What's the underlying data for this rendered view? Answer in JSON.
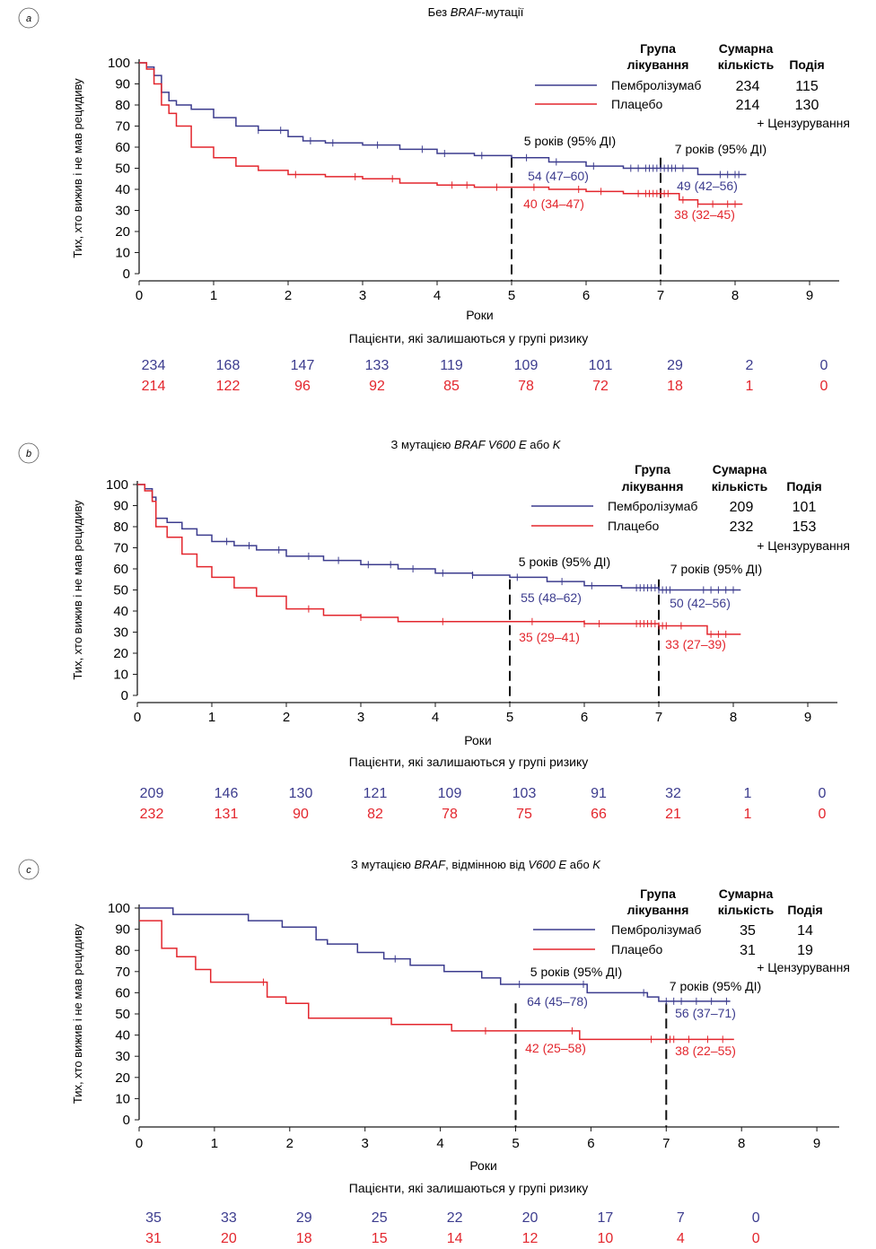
{
  "common": {
    "xlabel": "Роки",
    "ylabel": "Тих, хто вижив і не мав рецидиву",
    "risk_title": "Пацієнти, які залишаються у групі ризику",
    "legend_header_group": [
      "Група",
      "лікування"
    ],
    "legend_header_total": [
      "Сумарна",
      "кількість"
    ],
    "legend_header_events": "Подія",
    "censor_note": "+ Цензурування",
    "colors": {
      "pembro": "#3c3c8e",
      "placebo": "#e3262d",
      "axis": "#1a1a1a"
    }
  },
  "chart_data": [
    {
      "type": "line",
      "panel_letter": "a",
      "title_parts": [
        "Без ",
        "BRAF",
        "-мутації"
      ],
      "title_italic": [
        false,
        true,
        false
      ],
      "xticks": [
        0,
        1,
        2,
        3,
        4,
        5,
        6,
        7,
        8,
        9
      ],
      "yticks": [
        0,
        10,
        20,
        30,
        40,
        50,
        60,
        70,
        80,
        90,
        100
      ],
      "xlim": [
        0,
        9.4
      ],
      "ylim": [
        0,
        100
      ],
      "series": [
        {
          "name": "Пембролізумаб",
          "total": "234",
          "events": "115",
          "x": [
            0,
            0.1,
            0.2,
            0.3,
            0.4,
            0.5,
            0.7,
            1,
            1.3,
            1.6,
            2,
            2.2,
            2.5,
            3,
            3.5,
            4,
            4.5,
            5,
            5.5,
            6,
            6.5,
            7,
            7.5,
            8,
            8.15
          ],
          "y": [
            100,
            98,
            94,
            86,
            82,
            80,
            78,
            74,
            70,
            68,
            65,
            63,
            62,
            61,
            59,
            57,
            56,
            55,
            53,
            51,
            50,
            50,
            47,
            47,
            47
          ],
          "censor_x": [
            1.6,
            1.9,
            2.3,
            2.6,
            3.2,
            3.8,
            4.1,
            4.6,
            5.2,
            5.6,
            6.1,
            6.6,
            6.7,
            6.8,
            6.85,
            6.9,
            6.95,
            7.0,
            7.05,
            7.1,
            7.15,
            7.2,
            7.3,
            7.8,
            7.9,
            8.0,
            8.05
          ]
        },
        {
          "name": "Плацебо",
          "total": "214",
          "events": "130",
          "x": [
            0,
            0.1,
            0.2,
            0.3,
            0.4,
            0.5,
            0.7,
            1,
            1.3,
            1.6,
            2,
            2.5,
            3,
            3.5,
            4,
            4.5,
            5,
            5.5,
            6,
            6.5,
            7,
            7.25,
            7.5,
            8,
            8.1
          ],
          "y": [
            100,
            97,
            90,
            80,
            76,
            70,
            60,
            55,
            51,
            49,
            47,
            46,
            45,
            43,
            42,
            41,
            41,
            40,
            39,
            38,
            38,
            35,
            33,
            33,
            33
          ],
          "censor_x": [
            2.1,
            2.9,
            3.4,
            4.2,
            4.4,
            4.8,
            5.3,
            5.9,
            6.2,
            6.7,
            6.8,
            6.85,
            6.9,
            6.95,
            7.0,
            7.05,
            7.1,
            7.3,
            7.5,
            7.7,
            7.9,
            8.0
          ]
        }
      ],
      "annotations": {
        "five_label": "5 років (95% ДІ)",
        "seven_label": "7 років (95% ДІ)",
        "pembro_5": "54 (47–60)",
        "placebo_5": "40 (34–47)",
        "pembro_7": "49 (42–56)",
        "placebo_7": "38 (32–45)"
      },
      "risk": {
        "pembro": [
          "234",
          "168",
          "147",
          "133",
          "119",
          "109",
          "101",
          "29",
          "2",
          "0"
        ],
        "placebo": [
          "214",
          "122",
          "96",
          "92",
          "85",
          "78",
          "72",
          "18",
          "1",
          "0"
        ]
      }
    },
    {
      "type": "line",
      "panel_letter": "b",
      "title_parts": [
        "З мутацією ",
        "BRAF V600 E",
        " або ",
        "K"
      ],
      "title_italic": [
        false,
        true,
        false,
        true
      ],
      "xticks": [
        0,
        1,
        2,
        3,
        4,
        5,
        6,
        7,
        8,
        9
      ],
      "yticks": [
        0,
        10,
        20,
        30,
        40,
        50,
        60,
        70,
        80,
        90,
        100
      ],
      "xlim": [
        0,
        9.4
      ],
      "ylim": [
        0,
        100
      ],
      "series": [
        {
          "name": "Пембролізумаб",
          "total": "209",
          "events": "101",
          "x": [
            0,
            0.1,
            0.2,
            0.25,
            0.4,
            0.6,
            0.8,
            1,
            1.3,
            1.6,
            2,
            2.5,
            3,
            3.5,
            4,
            4.5,
            5,
            5.5,
            6,
            6.5,
            7,
            7.5,
            8,
            8.1
          ],
          "y": [
            100,
            98,
            94,
            84,
            82,
            79,
            76,
            73,
            71,
            69,
            66,
            64,
            62,
            60,
            58,
            57,
            56,
            54,
            52,
            51,
            50,
            50,
            50,
            50
          ],
          "censor_x": [
            0.2,
            1.2,
            1.5,
            1.9,
            2.3,
            2.7,
            3.1,
            3.4,
            3.7,
            4.1,
            4.5,
            5.1,
            5.7,
            6.1,
            6.7,
            6.75,
            6.8,
            6.85,
            6.9,
            6.95,
            7.0,
            7.05,
            7.1,
            7.15,
            7.6,
            7.7,
            7.8,
            7.9,
            8.0
          ]
        },
        {
          "name": "Плацебо",
          "total": "232",
          "events": "153",
          "x": [
            0,
            0.1,
            0.2,
            0.25,
            0.4,
            0.6,
            0.8,
            1,
            1.3,
            1.6,
            2,
            2.5,
            3,
            3.5,
            4,
            4.5,
            5,
            5.5,
            6,
            6.5,
            7,
            7.5,
            7.65,
            8,
            8.1
          ],
          "y": [
            100,
            97,
            92,
            80,
            75,
            67,
            61,
            56,
            51,
            47,
            41,
            38,
            37,
            35,
            35,
            35,
            35,
            35,
            34,
            34,
            33,
            33,
            29,
            29,
            29
          ],
          "censor_x": [
            2.3,
            3.0,
            4.1,
            5.3,
            6.0,
            6.2,
            6.7,
            6.75,
            6.8,
            6.85,
            6.9,
            6.95,
            7.0,
            7.05,
            7.1,
            7.3,
            7.7,
            7.8,
            7.9
          ]
        }
      ],
      "annotations": {
        "five_label": "5 років (95% ДІ)",
        "seven_label": "7 років (95% ДІ)",
        "pembro_5": "55 (48–62)",
        "placebo_5": "35 (29–41)",
        "pembro_7": "50 (42–56)",
        "placebo_7": "33 (27–39)"
      },
      "risk": {
        "pembro": [
          "209",
          "146",
          "130",
          "121",
          "109",
          "103",
          "91",
          "32",
          "1",
          "0"
        ],
        "placebo": [
          "232",
          "131",
          "90",
          "82",
          "78",
          "75",
          "66",
          "21",
          "1",
          "0"
        ]
      }
    },
    {
      "type": "line",
      "panel_letter": "c",
      "title_parts": [
        "З мутацією ",
        "BRAF",
        ", відмінною від ",
        "V600 E",
        " або ",
        "K"
      ],
      "title_italic": [
        false,
        true,
        false,
        true,
        false,
        true
      ],
      "xticks": [
        0,
        1,
        2,
        3,
        4,
        5,
        6,
        7,
        8,
        9
      ],
      "yticks": [
        0,
        10,
        20,
        30,
        40,
        50,
        60,
        70,
        80,
        90,
        100
      ],
      "xlim": [
        0,
        9.4
      ],
      "ylim": [
        0,
        100
      ],
      "series": [
        {
          "name": "Пембролізумаб",
          "total": "35",
          "events": "14",
          "x": [
            0,
            0.45,
            1.3,
            1.45,
            1.9,
            2.35,
            2.5,
            2.9,
            3.25,
            3.6,
            4.05,
            4.55,
            4.8,
            5.95,
            6.75,
            6.9,
            7.85
          ],
          "y": [
            100,
            97,
            97,
            94,
            91,
            85,
            83,
            79,
            76,
            73,
            70,
            67,
            64,
            60,
            58,
            56,
            56
          ],
          "censor_x": [
            3.4,
            5.05,
            5.9,
            6.7,
            7.0,
            7.1,
            7.2,
            7.4,
            7.6,
            7.8
          ]
        },
        {
          "name": "Плацебо",
          "total": "31",
          "events": "19",
          "x": [
            0,
            0.25,
            0.3,
            0.5,
            0.75,
            0.95,
            1.7,
            1.95,
            2.25,
            3.35,
            4.15,
            5.0,
            5.85,
            7.9
          ],
          "y": [
            94,
            94,
            81,
            77,
            71,
            65,
            58,
            55,
            48,
            45,
            42,
            42,
            38,
            38
          ],
          "censor_x": [
            1.65,
            4.6,
            5.75,
            6.8,
            7.05,
            7.1,
            7.3,
            7.55,
            7.75
          ]
        }
      ],
      "annotations": {
        "five_label": "5 років (95% ДІ)",
        "seven_label": "7 років (95% ДІ)",
        "pembro_5": "64 (45–78)",
        "placebo_5": "42 (25–58)",
        "pembro_7": "56 (37–71)",
        "placebo_7": "38 (22–55)"
      },
      "risk": {
        "pembro": [
          "35",
          "33",
          "29",
          "25",
          "22",
          "20",
          "17",
          "7",
          "0"
        ],
        "placebo": [
          "31",
          "20",
          "18",
          "15",
          "14",
          "12",
          "10",
          "4",
          "0"
        ]
      }
    }
  ]
}
